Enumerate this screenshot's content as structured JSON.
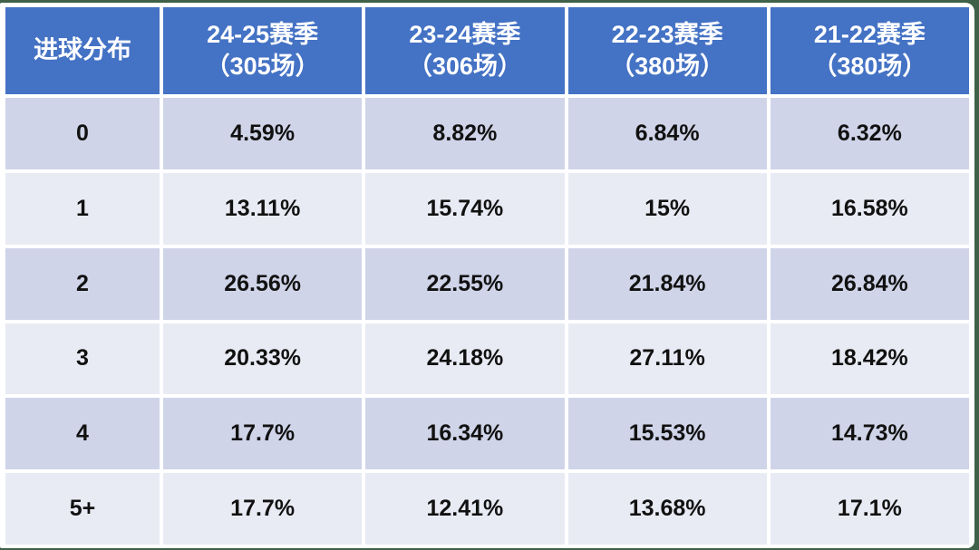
{
  "table": {
    "row_header_label": "进球分布",
    "columns": [
      {
        "title": "24-25赛季",
        "subtitle": "（305场）"
      },
      {
        "title": "23-24赛季",
        "subtitle": "（306场）"
      },
      {
        "title": "22-23赛季",
        "subtitle": "（380场）"
      },
      {
        "title": "21-22赛季",
        "subtitle": "（380场）"
      }
    ],
    "rows": [
      {
        "label": "0",
        "values": [
          "4.59%",
          "8.82%",
          "6.84%",
          "6.32%"
        ]
      },
      {
        "label": "1",
        "values": [
          "13.11%",
          "15.74%",
          "15%",
          "16.58%"
        ]
      },
      {
        "label": "2",
        "values": [
          "26.56%",
          "22.55%",
          "21.84%",
          "26.84%"
        ]
      },
      {
        "label": "3",
        "values": [
          "20.33%",
          "24.18%",
          "27.11%",
          "18.42%"
        ]
      },
      {
        "label": "4",
        "values": [
          "17.7%",
          "16.34%",
          "15.53%",
          "14.73%"
        ]
      },
      {
        "label": "5+",
        "values": [
          "17.7%",
          "12.41%",
          "13.68%",
          "17.1%"
        ]
      }
    ]
  },
  "colors": {
    "header_bg": "#4472C4",
    "header_text": "#FFFFFF",
    "band_dark": "#CFD4E8",
    "band_light": "#E9EBF4",
    "body_text": "#111111",
    "frame_green": "#3E6147"
  },
  "chart_data": {
    "type": "table",
    "title": "进球分布",
    "categories": [
      "0",
      "1",
      "2",
      "3",
      "4",
      "5+"
    ],
    "series": [
      {
        "name": "24-25赛季（305场）",
        "values": [
          "4.59%",
          "13.11%",
          "26.56%",
          "20.33%",
          "17.7%",
          "17.7%"
        ]
      },
      {
        "name": "23-24赛季（306场）",
        "values": [
          "8.82%",
          "15.74%",
          "22.55%",
          "24.18%",
          "16.34%",
          "12.41%"
        ]
      },
      {
        "name": "22-23赛季（380场）",
        "values": [
          "6.84%",
          "15%",
          "21.84%",
          "27.11%",
          "15.53%",
          "13.68%"
        ]
      },
      {
        "name": "21-22赛季（380场）",
        "values": [
          "6.32%",
          "16.58%",
          "26.84%",
          "18.42%",
          "14.73%",
          "17.1%"
        ]
      }
    ],
    "layout": {
      "banded_rows": true,
      "header_color": "#4472C4",
      "grid": "white-gaps"
    }
  }
}
